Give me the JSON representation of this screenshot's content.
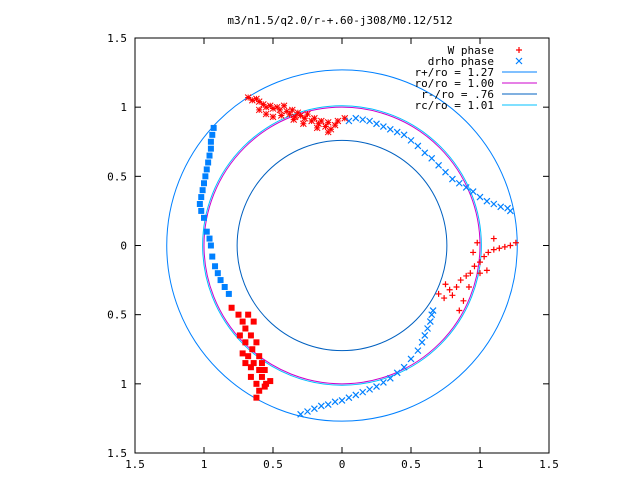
{
  "chart_data": {
    "type": "scatter",
    "title": "m3/n1.5/q2.0/r-+.60-j308/M0.12/512",
    "xlim": [
      -1.5,
      1.5
    ],
    "ylim": [
      -1.5,
      1.5
    ],
    "x_ticks": [
      -1.5,
      -1,
      -0.5,
      0,
      0.5,
      1,
      1.5
    ],
    "y_ticks": [
      -1.5,
      -1,
      -0.5,
      0,
      0.5,
      1,
      1.5
    ],
    "x_tick_labels": [
      "1.5",
      "1",
      "0.5",
      "0",
      "0.5",
      "1",
      "1.5"
    ],
    "y_tick_labels": [
      "1.5",
      "1",
      "0.5",
      "0",
      "0.5",
      "1",
      "1.5"
    ],
    "grid": false,
    "legend_position": "top-right",
    "series": [
      {
        "name": "W phase",
        "kind": "points",
        "color": "#ff0000",
        "clusters": [
          {
            "marker": "star",
            "points": [
              [
                -0.68,
                1.07
              ],
              [
                -0.65,
                1.05
              ],
              [
                -0.62,
                1.06
              ],
              [
                -0.6,
                1.04
              ],
              [
                -0.57,
                1.02
              ],
              [
                -0.55,
                1.0
              ],
              [
                -0.52,
                1.01
              ],
              [
                -0.5,
                0.99
              ],
              [
                -0.47,
                1.0
              ],
              [
                -0.45,
                0.98
              ],
              [
                -0.42,
                1.01
              ],
              [
                -0.4,
                0.97
              ],
              [
                -0.38,
                0.95
              ],
              [
                -0.36,
                0.98
              ],
              [
                -0.34,
                0.93
              ],
              [
                -0.32,
                0.96
              ],
              [
                -0.3,
                0.94
              ],
              [
                -0.27,
                0.92
              ],
              [
                -0.25,
                0.95
              ],
              [
                -0.22,
                0.9
              ],
              [
                -0.2,
                0.92
              ],
              [
                -0.17,
                0.88
              ],
              [
                -0.15,
                0.9
              ],
              [
                -0.12,
                0.86
              ],
              [
                -0.1,
                0.89
              ],
              [
                -0.08,
                0.84
              ],
              [
                -0.05,
                0.87
              ],
              [
                -0.03,
                0.9
              ],
              [
                -0.6,
                0.98
              ],
              [
                -0.55,
                0.95
              ],
              [
                -0.5,
                0.93
              ],
              [
                -0.44,
                0.94
              ],
              [
                -0.35,
                0.91
              ],
              [
                -0.28,
                0.88
              ],
              [
                -0.18,
                0.85
              ],
              [
                -0.1,
                0.82
              ],
              [
                0.02,
                0.92
              ]
            ]
          },
          {
            "marker": "square",
            "points": [
              [
                -0.8,
                -0.45
              ],
              [
                -0.75,
                -0.5
              ],
              [
                -0.72,
                -0.55
              ],
              [
                -0.7,
                -0.6
              ],
              [
                -0.68,
                -0.5
              ],
              [
                -0.66,
                -0.65
              ],
              [
                -0.7,
                -0.7
              ],
              [
                -0.65,
                -0.75
              ],
              [
                -0.68,
                -0.8
              ],
              [
                -0.62,
                -0.7
              ],
              [
                -0.64,
                -0.85
              ],
              [
                -0.6,
                -0.9
              ],
              [
                -0.66,
                -0.95
              ],
              [
                -0.62,
                -1.0
              ],
              [
                -0.58,
                -0.95
              ],
              [
                -0.6,
                -1.05
              ],
              [
                -0.56,
                -1.02
              ],
              [
                -0.62,
                -1.1
              ],
              [
                -0.58,
                -0.85
              ],
              [
                -0.7,
                -0.85
              ],
              [
                -0.74,
                -0.65
              ],
              [
                -0.64,
                -0.55
              ],
              [
                -0.55,
                -1.0
              ],
              [
                -0.6,
                -0.8
              ],
              [
                -0.72,
                -0.78
              ],
              [
                -0.66,
                -0.88
              ],
              [
                -0.52,
                -0.98
              ],
              [
                -0.56,
                -0.9
              ]
            ]
          },
          {
            "marker": "plus",
            "points": [
              [
                0.7,
                -0.35
              ],
              [
                0.74,
                -0.38
              ],
              [
                0.78,
                -0.32
              ],
              [
                0.8,
                -0.36
              ],
              [
                0.83,
                -0.3
              ],
              [
                0.86,
                -0.25
              ],
              [
                0.9,
                -0.22
              ],
              [
                0.93,
                -0.2
              ],
              [
                0.96,
                -0.15
              ],
              [
                1.0,
                -0.12
              ],
              [
                1.03,
                -0.08
              ],
              [
                1.06,
                -0.05
              ],
              [
                1.1,
                -0.03
              ],
              [
                1.14,
                -0.02
              ],
              [
                1.18,
                -0.01
              ],
              [
                1.22,
                0.0
              ],
              [
                1.26,
                0.02
              ],
              [
                0.95,
                -0.05
              ],
              [
                0.98,
                0.02
              ],
              [
                1.0,
                -0.2
              ],
              [
                1.05,
                -0.18
              ],
              [
                0.88,
                -0.4
              ],
              [
                0.92,
                -0.3
              ],
              [
                1.1,
                0.05
              ],
              [
                0.85,
                -0.47
              ],
              [
                0.75,
                -0.28
              ]
            ]
          }
        ]
      },
      {
        "name": "drho phase",
        "kind": "points",
        "color": "#0080ff",
        "clusters": [
          {
            "marker": "square",
            "points": [
              [
                -0.93,
                0.85
              ],
              [
                -0.94,
                0.8
              ],
              [
                -0.95,
                0.75
              ],
              [
                -0.95,
                0.7
              ],
              [
                -0.96,
                0.65
              ],
              [
                -0.97,
                0.6
              ],
              [
                -0.98,
                0.55
              ],
              [
                -0.99,
                0.5
              ],
              [
                -1.0,
                0.45
              ],
              [
                -1.01,
                0.4
              ],
              [
                -1.02,
                0.35
              ],
              [
                -1.03,
                0.3
              ],
              [
                -1.02,
                0.25
              ],
              [
                -1.0,
                0.2
              ],
              [
                -0.98,
                0.1
              ],
              [
                -0.96,
                0.05
              ],
              [
                -0.95,
                0.0
              ],
              [
                -0.94,
                -0.08
              ],
              [
                -0.92,
                -0.15
              ],
              [
                -0.9,
                -0.2
              ],
              [
                -0.88,
                -0.25
              ],
              [
                -0.85,
                -0.3
              ],
              [
                -0.82,
                -0.35
              ]
            ]
          },
          {
            "marker": "cross",
            "points": [
              [
                0.05,
                0.9
              ],
              [
                0.1,
                0.92
              ],
              [
                0.15,
                0.91
              ],
              [
                0.2,
                0.9
              ],
              [
                0.25,
                0.88
              ],
              [
                0.3,
                0.86
              ],
              [
                0.35,
                0.84
              ],
              [
                0.4,
                0.82
              ],
              [
                0.45,
                0.8
              ],
              [
                0.5,
                0.76
              ],
              [
                0.55,
                0.72
              ],
              [
                0.6,
                0.67
              ],
              [
                0.65,
                0.63
              ],
              [
                0.7,
                0.58
              ],
              [
                0.75,
                0.53
              ],
              [
                0.8,
                0.48
              ],
              [
                0.85,
                0.45
              ],
              [
                0.9,
                0.42
              ],
              [
                0.95,
                0.39
              ],
              [
                1.0,
                0.35
              ],
              [
                1.05,
                0.32
              ],
              [
                1.1,
                0.3
              ],
              [
                1.15,
                0.28
              ],
              [
                1.2,
                0.27
              ],
              [
                1.22,
                0.25
              ],
              [
                -0.3,
                -1.22
              ],
              [
                -0.25,
                -1.2
              ],
              [
                -0.2,
                -1.18
              ],
              [
                -0.15,
                -1.16
              ],
              [
                -0.1,
                -1.15
              ],
              [
                -0.05,
                -1.13
              ],
              [
                0.0,
                -1.12
              ],
              [
                0.05,
                -1.1
              ],
              [
                0.1,
                -1.08
              ],
              [
                0.15,
                -1.06
              ],
              [
                0.2,
                -1.04
              ],
              [
                0.25,
                -1.02
              ],
              [
                0.3,
                -0.99
              ],
              [
                0.35,
                -0.96
              ],
              [
                0.4,
                -0.92
              ],
              [
                0.45,
                -0.88
              ],
              [
                0.5,
                -0.82
              ],
              [
                0.55,
                -0.76
              ],
              [
                0.58,
                -0.7
              ],
              [
                0.6,
                -0.65
              ],
              [
                0.62,
                -0.6
              ],
              [
                0.64,
                -0.55
              ],
              [
                0.65,
                -0.5
              ],
              [
                0.66,
                -0.47
              ]
            ]
          }
        ]
      },
      {
        "name": "r+/ro = 1.27",
        "kind": "circle",
        "radius": 1.27,
        "color": "#0080ff"
      },
      {
        "name": "ro/ro = 1.00",
        "kind": "circle",
        "radius": 1.0,
        "color": "#cc00cc"
      },
      {
        "name": "r-/ro = .76",
        "kind": "circle",
        "radius": 0.76,
        "color": "#0060c0"
      },
      {
        "name": "rc/ro = 1.01",
        "kind": "circle",
        "radius": 1.01,
        "color": "#00c0ff"
      }
    ]
  }
}
